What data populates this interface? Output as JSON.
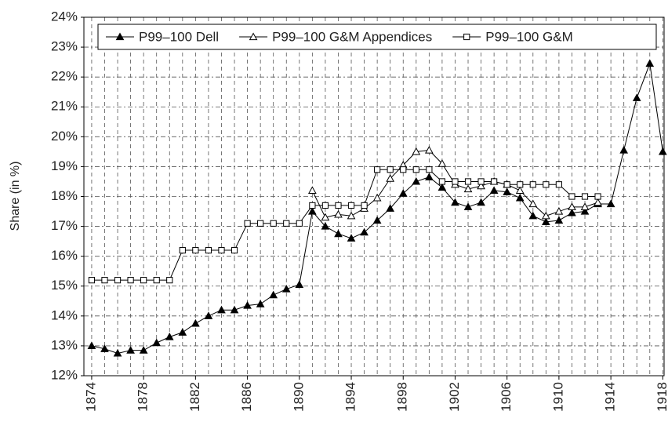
{
  "chart_data": {
    "type": "line",
    "y_label": "Share (in %)",
    "x": [
      1874,
      1875,
      1876,
      1877,
      1878,
      1879,
      1880,
      1881,
      1882,
      1883,
      1884,
      1885,
      1886,
      1887,
      1888,
      1889,
      1890,
      1891,
      1892,
      1893,
      1894,
      1895,
      1896,
      1897,
      1898,
      1899,
      1900,
      1901,
      1902,
      1903,
      1904,
      1905,
      1906,
      1907,
      1908,
      1909,
      1910,
      1911,
      1912,
      1913,
      1914,
      1915,
      1916,
      1917,
      1918
    ],
    "series": [
      {
        "name": "P99–100 Dell",
        "color": "#000000",
        "marker": "filled-triangle",
        "values": [
          13.0,
          12.9,
          12.75,
          12.85,
          12.85,
          13.1,
          13.3,
          13.45,
          13.75,
          14.0,
          14.2,
          14.2,
          14.35,
          14.4,
          14.7,
          14.9,
          15.05,
          17.5,
          17.0,
          16.75,
          16.6,
          16.8,
          17.2,
          17.6,
          18.1,
          18.5,
          18.65,
          18.3,
          17.8,
          17.65,
          17.8,
          18.2,
          18.15,
          17.95,
          17.35,
          17.15,
          17.2,
          17.45,
          17.5,
          17.75,
          17.75,
          19.55,
          21.3,
          22.45,
          19.5
        ]
      },
      {
        "name": "P99–100 G&M Appendices",
        "color": "#000000",
        "marker": "open-triangle",
        "values": [
          null,
          null,
          null,
          null,
          null,
          null,
          null,
          null,
          null,
          null,
          null,
          null,
          null,
          null,
          null,
          null,
          null,
          18.2,
          17.3,
          17.4,
          17.35,
          17.6,
          17.95,
          18.6,
          19.05,
          19.5,
          19.55,
          19.1,
          18.4,
          18.25,
          18.35,
          18.5,
          18.4,
          18.2,
          17.75,
          17.35,
          17.5,
          17.65,
          17.65,
          17.8,
          null,
          null,
          null,
          null,
          null
        ]
      },
      {
        "name": "P99–100 G&M",
        "color": "#000000",
        "marker": "open-square",
        "values": [
          15.2,
          15.2,
          15.2,
          15.2,
          15.2,
          15.2,
          15.2,
          16.2,
          16.2,
          16.2,
          16.2,
          16.2,
          17.1,
          17.1,
          17.1,
          17.1,
          17.1,
          17.7,
          17.7,
          17.7,
          17.7,
          17.7,
          18.9,
          18.9,
          18.9,
          18.9,
          18.9,
          18.5,
          18.5,
          18.5,
          18.5,
          18.5,
          18.4,
          18.4,
          18.4,
          18.4,
          18.4,
          18.0,
          18.0,
          18.0,
          null,
          null,
          null,
          null,
          null
        ]
      }
    ],
    "xlim": [
      1873.4,
      1918.1
    ],
    "xticks": [
      1874,
      1878,
      1882,
      1886,
      1890,
      1894,
      1898,
      1902,
      1906,
      1910,
      1914,
      1918
    ],
    "ylim": [
      12,
      24
    ],
    "yticks": [
      {
        "value": 12,
        "label": "12%"
      },
      {
        "value": 13,
        "label": "13%"
      },
      {
        "value": 14,
        "label": "14%"
      },
      {
        "value": 15,
        "label": "15%"
      },
      {
        "value": 16,
        "label": "16%"
      },
      {
        "value": 17,
        "label": "17%"
      },
      {
        "value": 18,
        "label": "18%"
      },
      {
        "value": 19,
        "label": "19%"
      },
      {
        "value": 20,
        "label": "20%"
      },
      {
        "value": 21,
        "label": "21%"
      },
      {
        "value": 22,
        "label": "22%"
      },
      {
        "value": 23,
        "label": "23%"
      },
      {
        "value": 24,
        "label": "24%"
      }
    ],
    "grid": true,
    "legend": "top"
  }
}
